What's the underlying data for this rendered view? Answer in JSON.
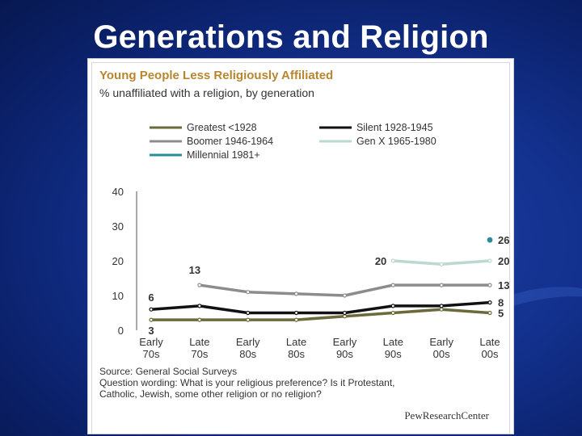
{
  "slide": {
    "title": "Generations and Religion"
  },
  "chart_data": {
    "type": "line",
    "title": "Young People Less Religiously Affiliated",
    "subtitle": "% unaffiliated with a religion, by generation",
    "categories": [
      "Early 70s",
      "Late 70s",
      "Early 80s",
      "Late 80s",
      "Early 90s",
      "Late 90s",
      "Early 00s",
      "Late 00s"
    ],
    "ylim": [
      0,
      40
    ],
    "yticks": [
      0,
      10,
      20,
      30,
      40
    ],
    "legend": "top",
    "grid": false,
    "series": [
      {
        "name": "Greatest <1928",
        "color": "#6b6b3a",
        "values": [
          3,
          3,
          3,
          3,
          4,
          5,
          6,
          5
        ]
      },
      {
        "name": "Silent 1928-1945",
        "color": "#111111",
        "values": [
          6,
          7,
          5,
          5,
          5,
          7,
          7,
          8
        ]
      },
      {
        "name": "Boomer 1946-1964",
        "color": "#8c8c8c",
        "values": [
          null,
          13,
          11,
          10.5,
          10,
          13,
          13,
          13
        ]
      },
      {
        "name": "Gen X 1965-1980",
        "color": "#bcd8d3",
        "values": [
          null,
          null,
          null,
          null,
          null,
          20,
          19,
          20
        ]
      },
      {
        "name": "Millennial 1981+",
        "color": "#2e8b9b",
        "values": [
          null,
          null,
          null,
          null,
          null,
          null,
          null,
          26
        ]
      }
    ],
    "data_labels": [
      {
        "text": "6",
        "series": 1,
        "index": 0,
        "pos": "above"
      },
      {
        "text": "3",
        "series": 0,
        "index": 0,
        "pos": "below"
      },
      {
        "text": "13",
        "series": 2,
        "index": 1,
        "pos": "above-left"
      },
      {
        "text": "20",
        "series": 3,
        "index": 5,
        "pos": "left"
      },
      {
        "text": "26",
        "series": 4,
        "index": 7,
        "pos": "right"
      },
      {
        "text": "20",
        "series": 3,
        "index": 7,
        "pos": "right"
      },
      {
        "text": "13",
        "series": 2,
        "index": 7,
        "pos": "right"
      },
      {
        "text": "8",
        "series": 1,
        "index": 7,
        "pos": "right"
      },
      {
        "text": "5",
        "series": 0,
        "index": 7,
        "pos": "right"
      }
    ]
  },
  "source": {
    "line1": "Source: General Social Surveys",
    "line2": "Question wording: What is your religious preference? Is it Protestant,",
    "line3": "Catholic, Jewish, some other religion or no religion?"
  },
  "logo": {
    "text": "PewResearchCenter"
  }
}
